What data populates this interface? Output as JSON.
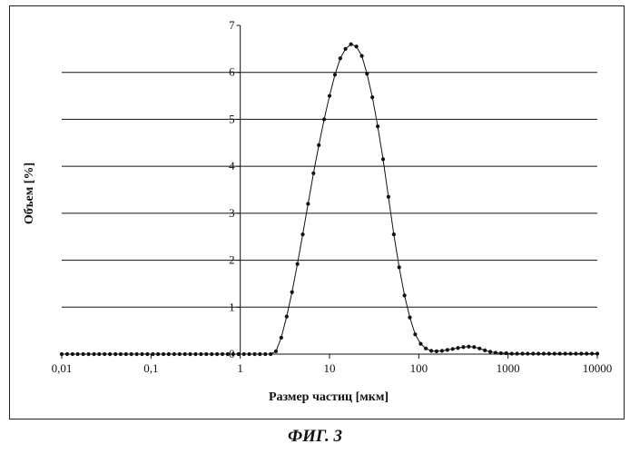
{
  "caption": "ФИГ. 3",
  "chart_data": {
    "type": "line",
    "title": "",
    "xlabel": "Размер частиц [мкм]",
    "ylabel": "Объем [%]",
    "xscale": "log",
    "xlim": [
      0.01,
      10000
    ],
    "ylim": [
      0,
      7
    ],
    "xtick_labels": [
      "0,01",
      "0,1",
      "1",
      "10",
      "100",
      "1000",
      "10000"
    ],
    "xtick_values": [
      0.01,
      0.1,
      1,
      10,
      100,
      1000,
      10000
    ],
    "ytick_labels": [
      "0",
      "1",
      "2",
      "3",
      "4",
      "5",
      "6",
      "7"
    ],
    "ytick_values": [
      0,
      1,
      2,
      3,
      4,
      5,
      6,
      7
    ],
    "grid": "horizontal",
    "legend": "none",
    "series": [
      {
        "color": "#111111",
        "marker": "dot",
        "x": [
          0.01,
          0.0115,
          0.0132,
          0.0151,
          0.0174,
          0.02,
          0.023,
          0.0263,
          0.0302,
          0.0347,
          0.04,
          0.0457,
          0.0525,
          0.0603,
          0.0692,
          0.0794,
          0.0912,
          0.105,
          0.12,
          0.138,
          0.158,
          0.182,
          0.209,
          0.24,
          0.275,
          0.316,
          0.363,
          0.417,
          0.479,
          0.55,
          0.631,
          0.724,
          0.832,
          0.955,
          1.1,
          1.26,
          1.45,
          1.66,
          1.91,
          2.19,
          2.51,
          2.88,
          3.31,
          3.8,
          4.37,
          5.01,
          5.75,
          6.61,
          7.59,
          8.71,
          10,
          11.5,
          13.2,
          15.1,
          17.4,
          20,
          23,
          26.3,
          30.2,
          34.7,
          39.8,
          45.7,
          52.5,
          60.3,
          69.2,
          79.4,
          91.2,
          105,
          120,
          138,
          158,
          182,
          209,
          240,
          275,
          316,
          363,
          417,
          479,
          550,
          631,
          724,
          832,
          955,
          1100,
          1260,
          1450,
          1660,
          1910,
          2190,
          2510,
          2880,
          3310,
          3800,
          4370,
          5010,
          5750,
          6610,
          7590,
          8710,
          10000
        ],
        "y": [
          0,
          0,
          0,
          0,
          0,
          0,
          0,
          0,
          0,
          0,
          0,
          0,
          0,
          0,
          0,
          0,
          0,
          0,
          0,
          0,
          0,
          0,
          0,
          0,
          0,
          0,
          0,
          0,
          0,
          0,
          0,
          0,
          0,
          0,
          0,
          0,
          0,
          0,
          0,
          0,
          0.06,
          0.35,
          0.8,
          1.32,
          1.92,
          2.55,
          3.2,
          3.85,
          4.45,
          5.0,
          5.5,
          5.95,
          6.3,
          6.5,
          6.6,
          6.55,
          6.35,
          5.97,
          5.47,
          4.85,
          4.15,
          3.35,
          2.55,
          1.85,
          1.25,
          0.78,
          0.42,
          0.22,
          0.12,
          0.07,
          0.06,
          0.07,
          0.09,
          0.11,
          0.13,
          0.15,
          0.16,
          0.15,
          0.12,
          0.08,
          0.05,
          0.03,
          0.02,
          0.02,
          0.01,
          0.01,
          0.01,
          0.01,
          0.01,
          0.01,
          0.01,
          0.01,
          0.01,
          0.01,
          0.01,
          0.01,
          0.01,
          0.01,
          0.01,
          0.01,
          0.01
        ]
      }
    ]
  }
}
